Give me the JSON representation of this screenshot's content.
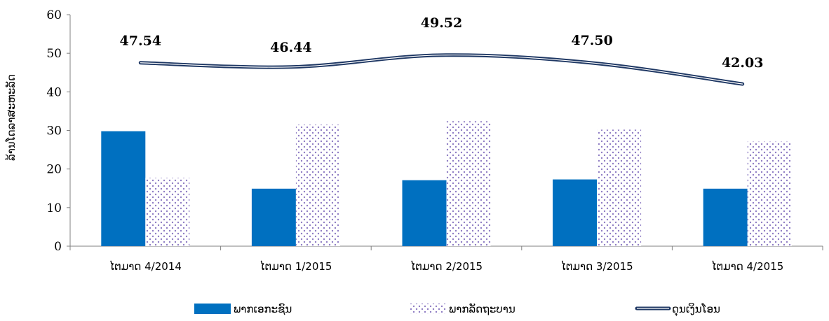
{
  "chart_data": {
    "type": "bar",
    "categories": [
      "ໄຕມາດ 4/2014",
      "ໄຕມາດ 1/2015",
      "ໄຕມາດ 2/2015",
      "ໄຕມາດ 3/2015",
      "ໄຕມາດ 4/2015"
    ],
    "series": [
      {
        "name": "ພາກເອກະຊົນ",
        "kind": "bar",
        "pattern": "solid",
        "color": "#0070C0",
        "values": [
          29.8,
          14.9,
          17.1,
          17.3,
          14.9
        ]
      },
      {
        "name": "ພາກລັດຖະບານ",
        "kind": "bar",
        "pattern": "dotted",
        "color": "#8E7CC3",
        "values": [
          17.7,
          31.5,
          32.4,
          30.2,
          27.1
        ]
      },
      {
        "name": "ດຸນເງິນໂອນ",
        "kind": "line",
        "color": "#1F3864",
        "values": [
          47.54,
          46.44,
          49.52,
          47.5,
          42.03
        ],
        "labels": [
          "47.54",
          "46.44",
          "49.52",
          "47.50",
          "42.03"
        ]
      }
    ],
    "ylabel": "ລ້ານໂດລາສະຫະລັດ",
    "ylim": [
      0,
      60
    ],
    "yticks": [
      "0",
      "10",
      "20",
      "30",
      "40",
      "50",
      "60"
    ],
    "legend_position": "bottom",
    "grid": false
  }
}
